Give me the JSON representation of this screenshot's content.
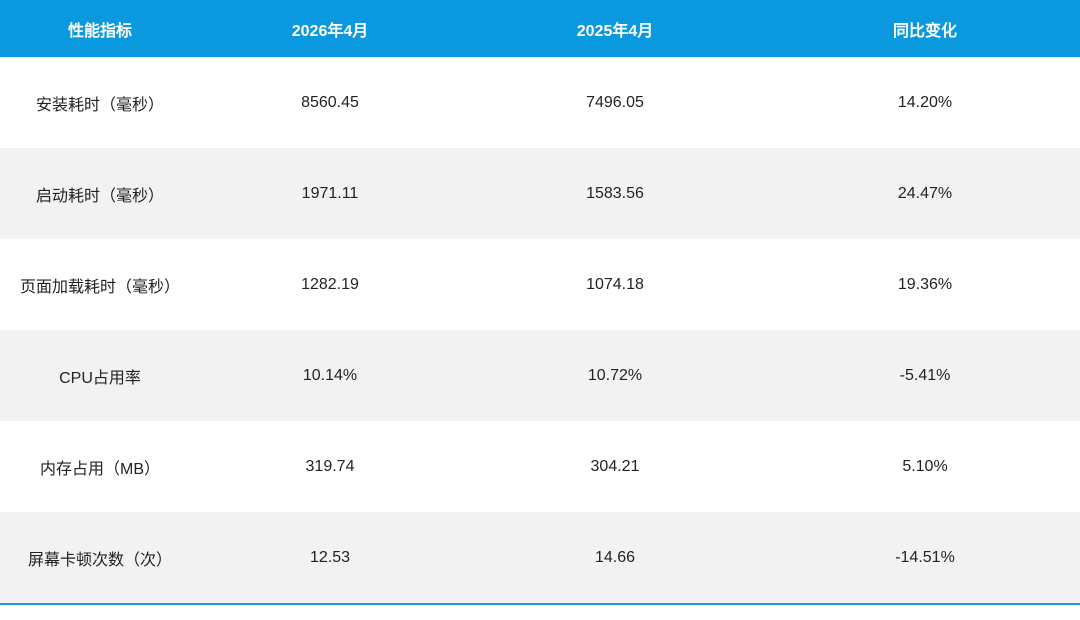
{
  "table": {
    "header": [
      "性能指标",
      "2026年4月",
      "2025年4月",
      "同比变化"
    ],
    "rows": [
      [
        "安装耗时（毫秒）",
        "8560.45",
        "7496.05",
        "14.20%"
      ],
      [
        "启动耗时（毫秒）",
        "1971.11",
        "1583.56",
        "24.47%"
      ],
      [
        "页面加载耗时（毫秒）",
        "1282.19",
        "1074.18",
        "19.36%"
      ],
      [
        "CPU占用率",
        "10.14%",
        "10.72%",
        "-5.41%"
      ],
      [
        "内存占用（MB）",
        "319.74",
        "304.21",
        "5.10%"
      ],
      [
        "屏幕卡顿次数（次）",
        "12.53",
        "14.66",
        "-14.51%"
      ]
    ]
  }
}
